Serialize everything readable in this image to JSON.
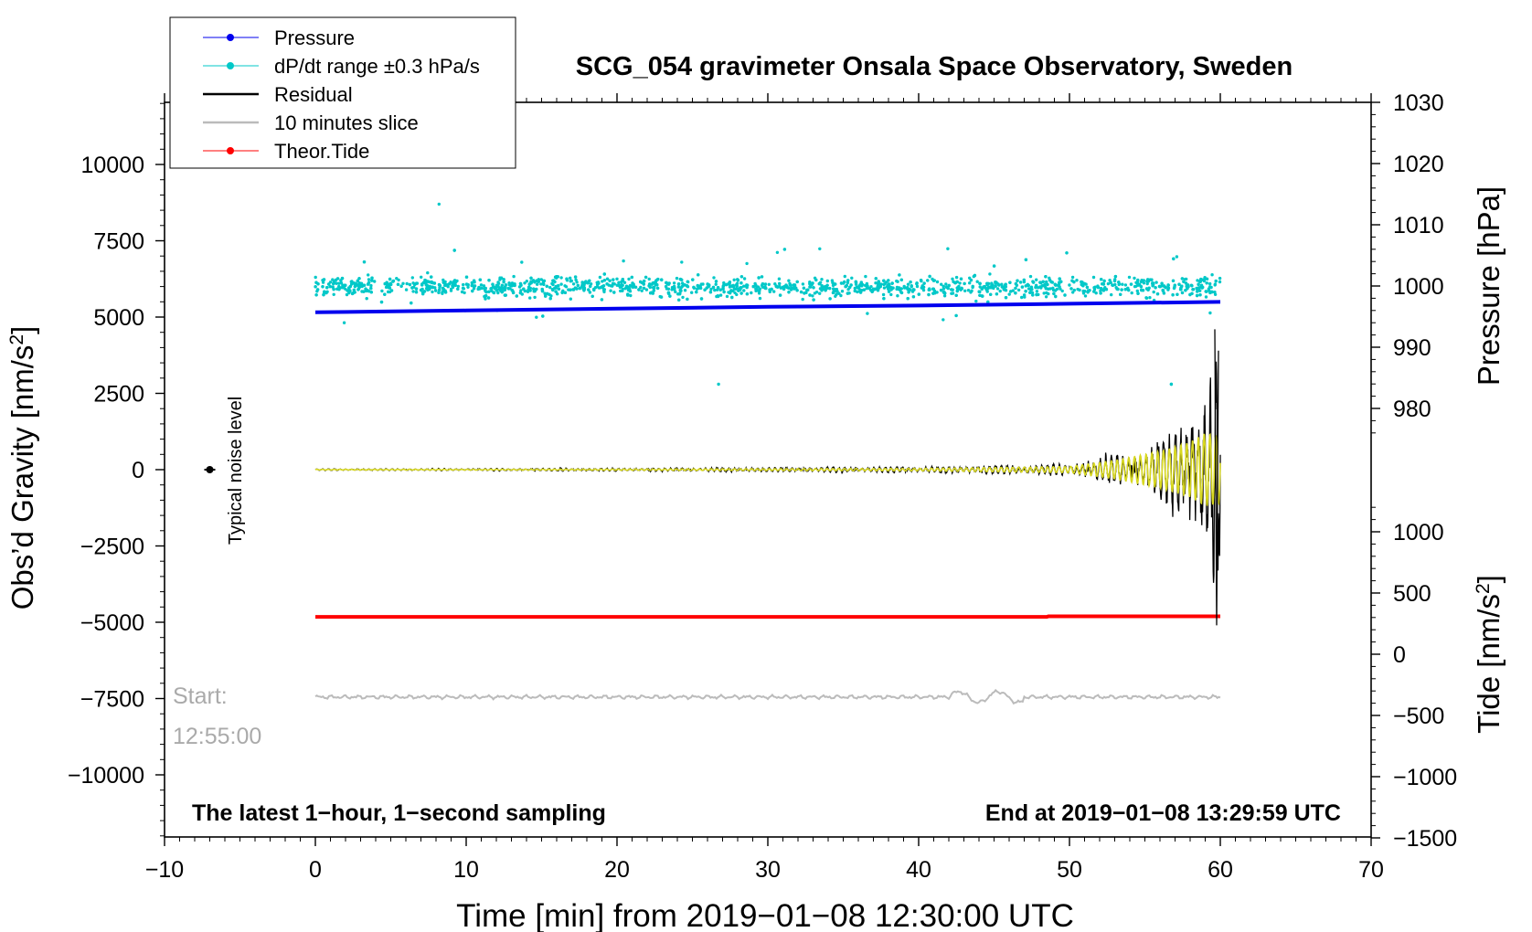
{
  "title": "SCG_054 gravimeter Onsala Space Observatory, Sweden",
  "colors": {
    "pressure": "#0000ee",
    "dpdt": "#00c8c8",
    "residual": "#000000",
    "slice": "#bbbbbb",
    "tide": "#ff0000",
    "filtered": "#d8d820"
  },
  "legend": [
    {
      "label": "Pressure",
      "color": "#0000ee",
      "style": "line-dot"
    },
    {
      "label": "dP/dt range ±0.3 hPa/s",
      "color": "#00c8c8",
      "style": "line-dot"
    },
    {
      "label": "Residual",
      "color": "#000000",
      "style": "line"
    },
    {
      "label": "10 minutes slice",
      "color": "#bbbbbb",
      "style": "line"
    },
    {
      "label": "Theor.Tide",
      "color": "#ff0000",
      "style": "line-dot"
    }
  ],
  "annotations": {
    "bottom_left": "The latest 1−hour, 1−second sampling",
    "bottom_right": "End at 2019−01−08 13:29:59 UTC",
    "noise_label": "Typical noise level",
    "start_label": "Start:",
    "start_time": "12:55:00"
  },
  "chart_data": {
    "type": "line",
    "xlabel": "Time [min] from 2019−01−08 12:30:00 UTC",
    "xlim": [
      -10,
      70
    ],
    "xticks": [
      -10,
      0,
      10,
      20,
      30,
      40,
      50,
      60,
      70
    ],
    "xtick_labels": [
      "−10",
      "0",
      "10",
      "20",
      "30",
      "40",
      "50",
      "60",
      "70"
    ],
    "y_left": {
      "label": "Obs'd Gravity [nm/s²]",
      "label_main": "Obs’d Gravity [nm/s",
      "label_sup": "2",
      "label_end": "]",
      "lim": [
        -12000,
        12000
      ],
      "ticks": [
        10000,
        7500,
        5000,
        2500,
        0,
        -2500,
        -5000,
        -7500,
        -10000
      ],
      "tick_labels": [
        "10000",
        "7500",
        "5000",
        "2500",
        "0",
        "−2500",
        "−5000",
        "−7500",
        "−10000"
      ]
    },
    "y_right_pressure": {
      "label": "Pressure [hPa]",
      "ticks": [
        1030,
        1020,
        1010,
        1000,
        990,
        980
      ],
      "tick_labels": [
        "1030",
        "1020",
        "1010",
        "1000",
        "990",
        "980"
      ]
    },
    "y_right_tide": {
      "label": "Tide [nm/s²]",
      "label_main": "Tide [nm/s",
      "label_sup": "2",
      "label_end": "]",
      "ticks": [
        1000,
        500,
        0,
        -500,
        -1000,
        -1500
      ],
      "tick_labels": [
        "1000",
        "500",
        "0",
        "−500",
        "−1000",
        "−1500"
      ]
    },
    "series": [
      {
        "name": "Pressure",
        "unit": "hPa",
        "x": [
          0,
          10,
          20,
          30,
          40,
          50,
          60
        ],
        "values": [
          995.7,
          996.0,
          996.3,
          996.6,
          996.8,
          997.1,
          997.4
        ]
      },
      {
        "name": "dP/dt range ±0.3 hPa/s",
        "unit": "plot nm/s² offset",
        "x": [
          0,
          60
        ],
        "values": [
          6000,
          6000
        ],
        "scatter_half_range": 700
      },
      {
        "name": "Theor.Tide",
        "unit": "nm/s²",
        "x": [
          0,
          48.5,
          48.6,
          60
        ],
        "values": [
          305,
          305,
          310,
          310
        ]
      },
      {
        "name": "10 minutes slice",
        "unit": "nm/s²",
        "x": [
          0,
          60
        ],
        "values": [
          -7450,
          -7450
        ]
      },
      {
        "name": "Residual",
        "unit": "nm/s²",
        "x": [
          0,
          20,
          40,
          50,
          53,
          56,
          58,
          59,
          59.5,
          59.8,
          60
        ],
        "amplitude": [
          20,
          40,
          80,
          150,
          400,
          800,
          1600,
          2200,
          3000,
          4500,
          4000
        ]
      },
      {
        "name": "Residual filtered",
        "unit": "nm/s²",
        "x": [
          0,
          20,
          40,
          50,
          53,
          56,
          58,
          59,
          60
        ],
        "amplitude": [
          10,
          20,
          40,
          100,
          300,
          600,
          900,
          1200,
          1100
        ]
      }
    ],
    "noise_level": {
      "x": -7,
      "y": 0,
      "amplitude": 100
    }
  }
}
